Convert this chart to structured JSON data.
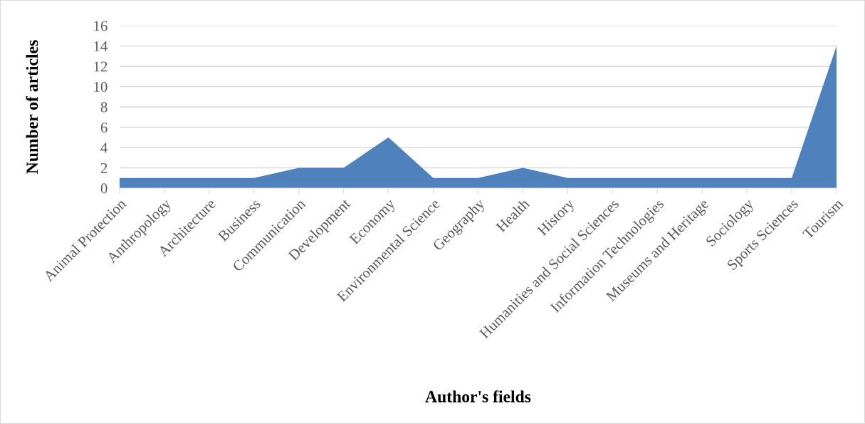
{
  "chart_data": {
    "type": "area",
    "xlabel": "Author's fields",
    "ylabel": "Number of articles",
    "categories": [
      "Animal Protection",
      "Anthropology",
      "Architecture",
      "Business",
      "Communication",
      "Development",
      "Economy",
      "Environmental Science",
      "Geography",
      "Health",
      "History",
      "Humanities and Social Sciences",
      "Information Technologies",
      "Museums and Heritage",
      "Sociology",
      "Sports Sciences",
      "Tourism"
    ],
    "values": [
      1,
      1,
      1,
      1,
      2,
      2,
      5,
      1,
      1,
      2,
      1,
      1,
      1,
      1,
      1,
      1,
      14
    ],
    "color": "#4f81bd",
    "ylim": [
      0,
      16
    ],
    "yticks": [
      0,
      2,
      4,
      6,
      8,
      10,
      12,
      14,
      16
    ],
    "grid": "y",
    "legend": false
  }
}
